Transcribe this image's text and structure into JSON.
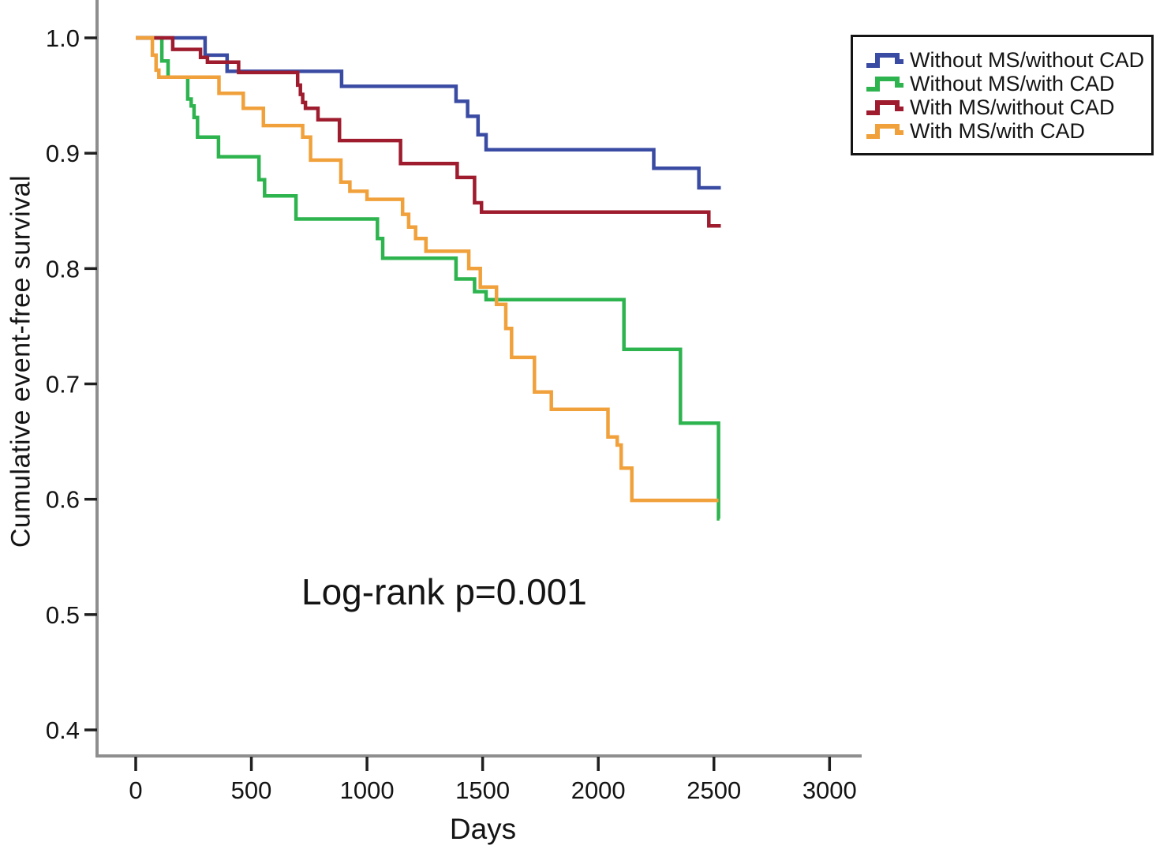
{
  "chart_data": {
    "type": "line",
    "subtype": "kaplan-meier-step",
    "title": "",
    "xlabel": "Days",
    "ylabel": "Cumulative event-free survival",
    "annotation": "Log-rank p=0.001",
    "log_rank_p": "0.001",
    "grid": false,
    "legend_position": "top-right",
    "x_ticks": [
      0,
      500,
      1000,
      1500,
      2000,
      2500,
      3000
    ],
    "x_tick_labels": [
      "0",
      "500",
      "1000",
      "1500",
      "2000",
      "2500",
      "3000"
    ],
    "y_ticks": [
      1.0,
      0.9,
      0.8,
      0.7,
      0.6,
      0.5,
      0.4
    ],
    "y_tick_labels": [
      "1.0",
      "0.9",
      "0.8",
      "0.7",
      "0.6",
      "0.5",
      "0.4"
    ],
    "xlim": [
      0,
      3000
    ],
    "ylim": [
      0.4,
      1.0
    ],
    "series": [
      {
        "name": "Without MS/without CAD",
        "color": "#3A4BA3",
        "end_day": 2530,
        "points": [
          [
            0,
            1.0
          ],
          [
            300,
            0.985
          ],
          [
            395,
            0.971
          ],
          [
            890,
            0.958
          ],
          [
            1385,
            0.945
          ],
          [
            1435,
            0.932
          ],
          [
            1480,
            0.916
          ],
          [
            1515,
            0.903
          ],
          [
            2240,
            0.887
          ],
          [
            2435,
            0.87
          ]
        ]
      },
      {
        "name": "Without MS/with CAD",
        "color": "#2EB44F",
        "end_day": 2524,
        "points": [
          [
            0,
            1.0
          ],
          [
            113,
            0.98
          ],
          [
            140,
            0.966
          ],
          [
            225,
            0.947
          ],
          [
            240,
            0.941
          ],
          [
            252,
            0.931
          ],
          [
            267,
            0.914
          ],
          [
            358,
            0.897
          ],
          [
            533,
            0.877
          ],
          [
            557,
            0.863
          ],
          [
            693,
            0.843
          ],
          [
            1045,
            0.826
          ],
          [
            1068,
            0.809
          ],
          [
            1385,
            0.791
          ],
          [
            1465,
            0.78
          ],
          [
            1515,
            0.773
          ],
          [
            2111,
            0.73
          ],
          [
            2355,
            0.666
          ],
          [
            2520,
            0.583
          ]
        ]
      },
      {
        "name": "With MS/without CAD",
        "color": "#9E1C2E",
        "end_day": 2530,
        "points": [
          [
            0,
            1.0
          ],
          [
            160,
            0.99
          ],
          [
            280,
            0.983
          ],
          [
            310,
            0.979
          ],
          [
            445,
            0.97
          ],
          [
            700,
            0.959
          ],
          [
            712,
            0.951
          ],
          [
            722,
            0.944
          ],
          [
            734,
            0.939
          ],
          [
            788,
            0.929
          ],
          [
            881,
            0.911
          ],
          [
            1145,
            0.891
          ],
          [
            1390,
            0.879
          ],
          [
            1465,
            0.857
          ],
          [
            1495,
            0.849
          ],
          [
            2478,
            0.837
          ]
        ]
      },
      {
        "name": "With MS/with CAD",
        "color": "#F1A13B",
        "end_day": 2520,
        "points": [
          [
            0,
            1.0
          ],
          [
            72,
            0.985
          ],
          [
            88,
            0.972
          ],
          [
            100,
            0.966
          ],
          [
            360,
            0.952
          ],
          [
            465,
            0.939
          ],
          [
            552,
            0.924
          ],
          [
            722,
            0.914
          ],
          [
            756,
            0.894
          ],
          [
            887,
            0.875
          ],
          [
            926,
            0.867
          ],
          [
            1000,
            0.86
          ],
          [
            1154,
            0.847
          ],
          [
            1180,
            0.836
          ],
          [
            1210,
            0.826
          ],
          [
            1255,
            0.815
          ],
          [
            1440,
            0.8
          ],
          [
            1490,
            0.784
          ],
          [
            1560,
            0.769
          ],
          [
            1600,
            0.748
          ],
          [
            1625,
            0.723
          ],
          [
            1724,
            0.693
          ],
          [
            1797,
            0.678
          ],
          [
            2042,
            0.654
          ],
          [
            2082,
            0.647
          ],
          [
            2099,
            0.627
          ],
          [
            2145,
            0.599
          ]
        ]
      }
    ]
  }
}
